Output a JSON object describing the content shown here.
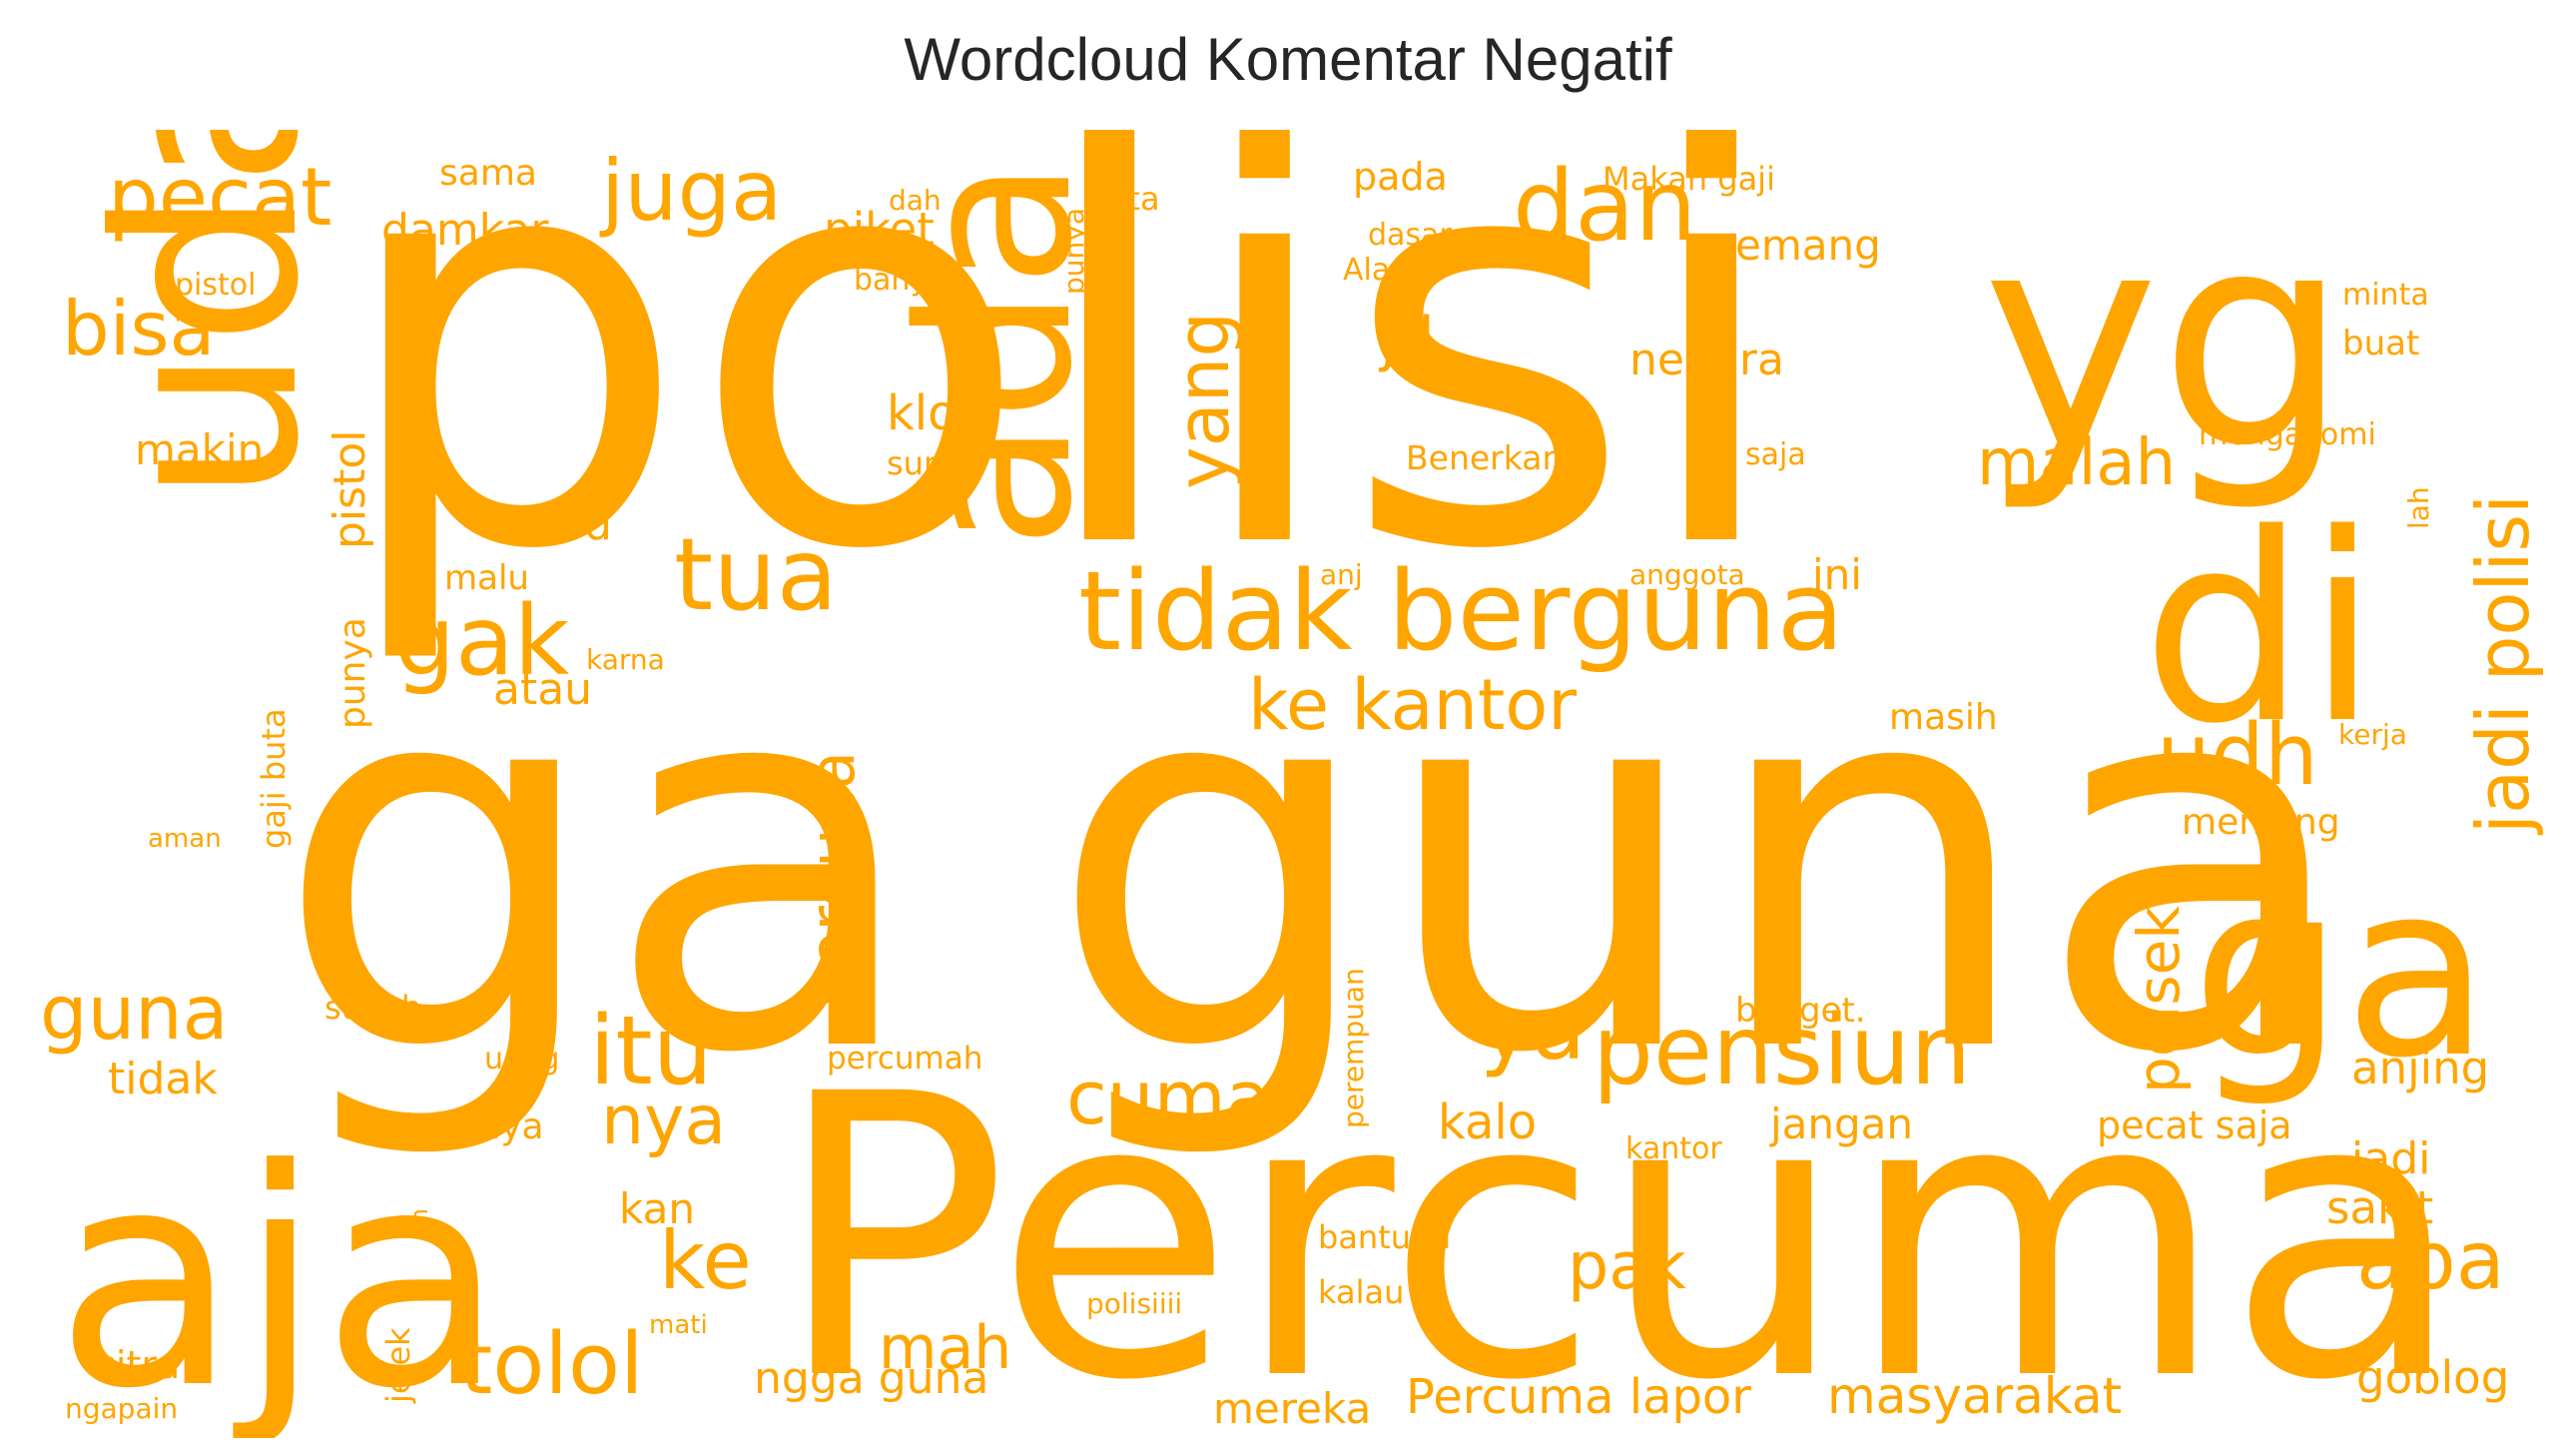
{
  "title": "Wordcloud Komentar Negatif",
  "color": "#FFA500",
  "words": [
    {
      "text": "polisi",
      "rotated": false
    },
    {
      "text": "ga",
      "rotated": false
    },
    {
      "text": "guna",
      "rotated": false
    },
    {
      "text": "Percuma",
      "rotated": false
    },
    {
      "text": "aja",
      "rotated": false
    },
    {
      "text": "yg",
      "rotated": false
    },
    {
      "text": "di",
      "rotated": false
    },
    {
      "text": "ga",
      "rotated": false
    },
    {
      "text": "udah",
      "rotated": true
    },
    {
      "text": "ada",
      "rotated": true
    },
    {
      "text": "tidak berguna",
      "rotated": false
    },
    {
      "text": "pecat",
      "rotated": false
    },
    {
      "text": "juga",
      "rotated": false
    },
    {
      "text": "dan",
      "rotated": false
    },
    {
      "text": "bisa",
      "rotated": false
    },
    {
      "text": "yang",
      "rotated": true
    },
    {
      "text": "jadi polisi",
      "rotated": true
    },
    {
      "text": "gak",
      "rotated": false
    },
    {
      "text": "tua",
      "rotated": false
    },
    {
      "text": "pensiun",
      "rotated": false
    },
    {
      "text": "itu",
      "rotated": false
    },
    {
      "text": "udh",
      "rotated": false
    },
    {
      "text": "ke kantor",
      "rotated": false
    },
    {
      "text": "guna",
      "rotated": false
    },
    {
      "text": "cuma",
      "rotated": false
    },
    {
      "text": "ya",
      "rotated": false
    },
    {
      "text": "berguna",
      "rotated": true
    },
    {
      "text": "polsek",
      "rotated": true
    },
    {
      "text": "malah",
      "rotated": false
    },
    {
      "text": "jd",
      "rotated": false
    },
    {
      "text": "nya",
      "rotated": false
    },
    {
      "text": "ke",
      "rotated": false
    },
    {
      "text": "tolol",
      "rotated": false
    },
    {
      "text": "mah",
      "rotated": false
    },
    {
      "text": "pak",
      "rotated": false
    },
    {
      "text": "apa",
      "rotated": false
    },
    {
      "text": "damkar",
      "rotated": false
    },
    {
      "text": "piket",
      "rotated": false
    },
    {
      "text": "emang",
      "rotated": false
    },
    {
      "text": "negara",
      "rotated": false
    },
    {
      "text": "klo",
      "rotated": false
    },
    {
      "text": "makin",
      "rotated": false
    },
    {
      "text": "pistol",
      "rotated": true
    },
    {
      "text": "punya",
      "rotated": true
    },
    {
      "text": "d",
      "rotated": false
    },
    {
      "text": "atau",
      "rotated": false
    },
    {
      "text": "tidak",
      "rotated": false
    },
    {
      "text": "kalo",
      "rotated": false
    },
    {
      "text": "jangan",
      "rotated": false
    },
    {
      "text": "kan",
      "rotated": false
    },
    {
      "text": "jadi",
      "rotated": false
    },
    {
      "text": "sakit",
      "rotated": false
    },
    {
      "text": "anjing",
      "rotated": false
    },
    {
      "text": "mereka",
      "rotated": false
    },
    {
      "text": "Percuma lapor",
      "rotated": false
    },
    {
      "text": "masyarakat",
      "rotated": false
    },
    {
      "text": "ngga guna",
      "rotated": false
    },
    {
      "text": "goblog",
      "rotated": false
    },
    {
      "text": "citra",
      "rotated": false
    },
    {
      "text": "ini",
      "rotated": false
    },
    {
      "text": "masih",
      "rotated": false
    },
    {
      "text": "mending",
      "rotated": false
    },
    {
      "text": "pecat saja",
      "rotated": false
    },
    {
      "text": "banget.",
      "rotated": false
    },
    {
      "text": "sama",
      "rotated": false
    },
    {
      "text": "pada",
      "rotated": false
    },
    {
      "text": "Makan gaji",
      "rotated": false
    },
    {
      "text": "minta",
      "rotated": false
    },
    {
      "text": "buat",
      "rotated": false
    },
    {
      "text": "Benerkan",
      "rotated": false
    },
    {
      "text": "saja",
      "rotated": false
    },
    {
      "text": "mengayomi",
      "rotated": false
    },
    {
      "text": "lah",
      "rotated": true
    },
    {
      "text": "suruh",
      "rotated": false
    },
    {
      "text": "malu",
      "rotated": false
    },
    {
      "text": "anj",
      "rotated": false
    },
    {
      "text": "anggota",
      "rotated": false
    },
    {
      "text": "karna",
      "rotated": false
    },
    {
      "text": "kerja",
      "rotated": false
    },
    {
      "text": "gaji buta",
      "rotated": true
    },
    {
      "text": "lain",
      "rotated": false
    },
    {
      "text": "aman",
      "rotated": false
    },
    {
      "text": "sudah",
      "rotated": false
    },
    {
      "text": "uang",
      "rotated": false
    },
    {
      "text": "percumah",
      "rotated": false
    },
    {
      "text": "perempuan",
      "rotated": true
    },
    {
      "text": "Makanya",
      "rotated": false
    },
    {
      "text": "kantor",
      "rotated": false
    },
    {
      "text": "ah",
      "rotated": true
    },
    {
      "text": "bantuan",
      "rotated": false
    },
    {
      "text": "kalau",
      "rotated": false
    },
    {
      "text": "polisiiii",
      "rotated": false
    },
    {
      "text": "jelek",
      "rotated": true
    },
    {
      "text": "mati",
      "rotated": false
    },
    {
      "text": "ngapain",
      "rotated": false
    },
    {
      "text": "dah",
      "rotated": false
    },
    {
      "text": "kita",
      "rotated": false
    },
    {
      "text": "punya",
      "rotated": true
    },
    {
      "text": "dasar",
      "rotated": false
    },
    {
      "text": "Alasan",
      "rotated": false
    },
    {
      "text": "banyak",
      "rotated": false
    },
    {
      "text": "pistol",
      "rotated": false
    }
  ]
}
